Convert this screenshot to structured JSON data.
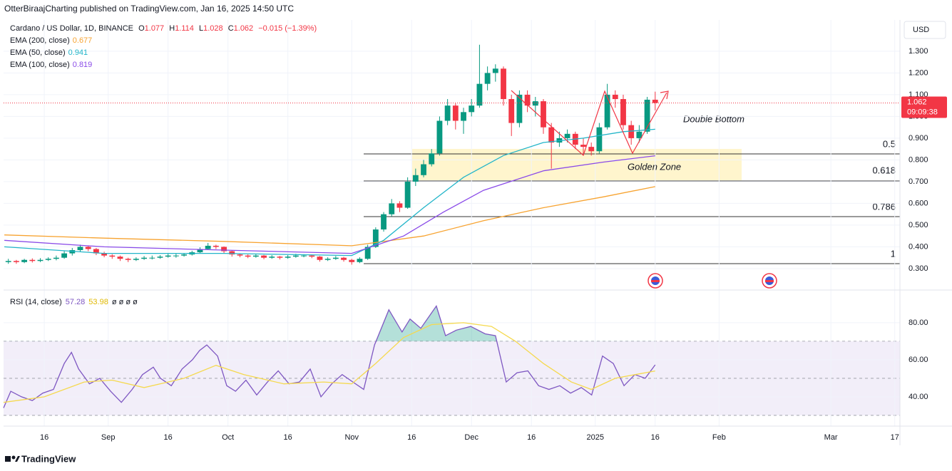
{
  "header": {
    "published": "OtterBiraajCharting published on TradingView.com, Jan 16, 2025 14:50 UTC"
  },
  "footer": {
    "brand": "TradingView"
  },
  "chart_data": [
    {
      "type": "candlestick",
      "title": "Cardano / US Dollar, 1D, BINANCE",
      "ohlc_legend": [
        {
          "key": "O",
          "value": "1.077"
        },
        {
          "key": "H",
          "value": "1.114"
        },
        {
          "key": "L",
          "value": "1.028"
        },
        {
          "key": "C",
          "value": "1.062"
        },
        {
          "key": "",
          "value": "−0.015 (−1.39%)"
        }
      ],
      "currency": "USD",
      "price_label": "1.062",
      "countdown": "09:09:38",
      "up_color": "#089981",
      "down_color": "#f23645",
      "xlim": [
        4.8,
        229.3
      ],
      "xticks": [
        {
          "value": 15,
          "label": "16"
        },
        {
          "value": 31,
          "label": "Sep"
        },
        {
          "value": 46,
          "label": "16"
        },
        {
          "value": 61,
          "label": "Oct"
        },
        {
          "value": 76,
          "label": "16"
        },
        {
          "value": 92,
          "label": "Nov"
        },
        {
          "value": 107,
          "label": "16"
        },
        {
          "value": 122,
          "label": "Dec"
        },
        {
          "value": 137,
          "label": "16"
        },
        {
          "value": 153,
          "label": "2025"
        },
        {
          "value": 168,
          "label": "16"
        },
        {
          "value": 184,
          "label": "Feb"
        },
        {
          "value": 212,
          "label": "Mar"
        },
        {
          "value": 228,
          "label": "17"
        }
      ],
      "ylim": [
        0.208,
        1.444
      ],
      "yticks": [
        {
          "value": 0.3,
          "label": "0.300"
        },
        {
          "value": 0.4,
          "label": "0.400"
        },
        {
          "value": 0.5,
          "label": "0.500"
        },
        {
          "value": 0.6,
          "label": "0.600"
        },
        {
          "value": 0.7,
          "label": "0.700"
        },
        {
          "value": 0.8,
          "label": "0.800"
        },
        {
          "value": 0.9,
          "label": "0.900"
        },
        {
          "value": 1.0,
          "label": "1.000"
        },
        {
          "value": 1.1,
          "label": "1.100"
        },
        {
          "value": 1.2,
          "label": "1.200"
        },
        {
          "value": 1.3,
          "label": "1.300"
        }
      ],
      "x": [
        6,
        8,
        10,
        12,
        14,
        16,
        18,
        20,
        22,
        24,
        26,
        28,
        30,
        32,
        34,
        36,
        38,
        40,
        42,
        44,
        46,
        48,
        50,
        52,
        54,
        56,
        58,
        60,
        62,
        64,
        66,
        68,
        70,
        72,
        74,
        76,
        78,
        80,
        82,
        84,
        86,
        88,
        90,
        92,
        94,
        96,
        98,
        100,
        102,
        104,
        106,
        108,
        110,
        112,
        114,
        116,
        118,
        120,
        122,
        124,
        126,
        128,
        130,
        132,
        134,
        136,
        138,
        140,
        142,
        144,
        146,
        148,
        150,
        152,
        154,
        156,
        158,
        160,
        162,
        164,
        166,
        168
      ],
      "ohlc": [
        [
          0.33,
          0.345,
          0.322,
          0.335
        ],
        [
          0.335,
          0.34,
          0.322,
          0.33
        ],
        [
          0.33,
          0.345,
          0.325,
          0.34
        ],
        [
          0.34,
          0.347,
          0.328,
          0.335
        ],
        [
          0.335,
          0.348,
          0.33,
          0.34
        ],
        [
          0.34,
          0.352,
          0.335,
          0.345
        ],
        [
          0.345,
          0.36,
          0.338,
          0.35
        ],
        [
          0.35,
          0.38,
          0.345,
          0.37
        ],
        [
          0.37,
          0.395,
          0.36,
          0.385
        ],
        [
          0.385,
          0.41,
          0.378,
          0.4
        ],
        [
          0.4,
          0.405,
          0.38,
          0.39
        ],
        [
          0.39,
          0.395,
          0.362,
          0.37
        ],
        [
          0.37,
          0.378,
          0.352,
          0.36
        ],
        [
          0.36,
          0.366,
          0.345,
          0.355
        ],
        [
          0.355,
          0.36,
          0.335,
          0.345
        ],
        [
          0.345,
          0.35,
          0.33,
          0.34
        ],
        [
          0.34,
          0.352,
          0.335,
          0.345
        ],
        [
          0.345,
          0.358,
          0.34,
          0.35
        ],
        [
          0.35,
          0.36,
          0.342,
          0.35
        ],
        [
          0.35,
          0.362,
          0.345,
          0.355
        ],
        [
          0.355,
          0.368,
          0.35,
          0.36
        ],
        [
          0.36,
          0.368,
          0.35,
          0.36
        ],
        [
          0.36,
          0.372,
          0.355,
          0.365
        ],
        [
          0.365,
          0.382,
          0.36,
          0.375
        ],
        [
          0.375,
          0.398,
          0.37,
          0.39
        ],
        [
          0.39,
          0.418,
          0.385,
          0.405
        ],
        [
          0.405,
          0.41,
          0.39,
          0.4
        ],
        [
          0.4,
          0.402,
          0.372,
          0.38
        ],
        [
          0.38,
          0.385,
          0.355,
          0.365
        ],
        [
          0.365,
          0.37,
          0.352,
          0.36
        ],
        [
          0.36,
          0.365,
          0.348,
          0.355
        ],
        [
          0.355,
          0.368,
          0.35,
          0.36
        ],
        [
          0.36,
          0.363,
          0.343,
          0.35
        ],
        [
          0.35,
          0.362,
          0.345,
          0.355
        ],
        [
          0.355,
          0.358,
          0.342,
          0.35
        ],
        [
          0.35,
          0.362,
          0.345,
          0.355
        ],
        [
          0.355,
          0.368,
          0.35,
          0.36
        ],
        [
          0.36,
          0.366,
          0.352,
          0.36
        ],
        [
          0.36,
          0.365,
          0.348,
          0.355
        ],
        [
          0.355,
          0.358,
          0.332,
          0.34
        ],
        [
          0.34,
          0.352,
          0.335,
          0.345
        ],
        [
          0.345,
          0.358,
          0.34,
          0.35
        ],
        [
          0.35,
          0.354,
          0.332,
          0.34
        ],
        [
          0.34,
          0.345,
          0.318,
          0.33
        ],
        [
          0.33,
          0.352,
          0.325,
          0.345
        ],
        [
          0.345,
          0.41,
          0.34,
          0.4
        ],
        [
          0.4,
          0.49,
          0.395,
          0.48
        ],
        [
          0.48,
          0.56,
          0.47,
          0.55
        ],
        [
          0.55,
          0.62,
          0.54,
          0.6
        ],
        [
          0.6,
          0.61,
          0.56,
          0.58
        ],
        [
          0.58,
          0.72,
          0.575,
          0.7
        ],
        [
          0.7,
          0.76,
          0.68,
          0.73
        ],
        [
          0.73,
          0.8,
          0.72,
          0.78
        ],
        [
          0.78,
          0.85,
          0.77,
          0.83
        ],
        [
          0.83,
          1.0,
          0.82,
          0.98
        ],
        [
          0.98,
          1.08,
          0.96,
          1.05
        ],
        [
          1.05,
          1.06,
          0.94,
          0.98
        ],
        [
          0.98,
          1.04,
          0.92,
          1.02
        ],
        [
          1.02,
          1.08,
          1.0,
          1.05
        ],
        [
          1.05,
          1.33,
          1.04,
          1.15
        ],
        [
          1.15,
          1.23,
          1.12,
          1.2
        ],
        [
          1.2,
          1.24,
          1.16,
          1.22
        ],
        [
          1.22,
          1.23,
          1.05,
          1.08
        ],
        [
          1.08,
          1.1,
          0.91,
          0.97
        ],
        [
          0.97,
          1.12,
          0.95,
          1.1
        ],
        [
          1.1,
          1.12,
          1.02,
          1.05
        ],
        [
          1.05,
          1.09,
          1.0,
          1.07
        ],
        [
          1.07,
          1.08,
          0.92,
          0.95
        ],
        [
          0.95,
          0.97,
          0.76,
          0.88
        ],
        [
          0.88,
          0.93,
          0.86,
          0.9
        ],
        [
          0.9,
          0.94,
          0.88,
          0.92
        ],
        [
          0.92,
          0.93,
          0.85,
          0.87
        ],
        [
          0.87,
          0.9,
          0.83,
          0.86
        ],
        [
          0.86,
          0.88,
          0.82,
          0.84
        ],
        [
          0.84,
          0.97,
          0.83,
          0.95
        ],
        [
          0.95,
          1.15,
          0.94,
          1.1
        ],
        [
          1.1,
          1.12,
          1.04,
          1.08
        ],
        [
          1.08,
          1.1,
          0.94,
          0.96
        ],
        [
          0.96,
          0.98,
          0.87,
          0.9
        ],
        [
          0.9,
          0.96,
          0.88,
          0.93
        ],
        [
          0.93,
          1.09,
          0.92,
          1.077
        ],
        [
          1.077,
          1.114,
          1.028,
          1.062
        ]
      ],
      "series": [
        {
          "name": "EMA (200, close)",
          "last_label": "0.677",
          "color": "#f7a330",
          "x": [
            5,
            30,
            60,
            92,
            110,
            125,
            140,
            155,
            168
          ],
          "values": [
            0.455,
            0.44,
            0.425,
            0.405,
            0.45,
            0.52,
            0.58,
            0.63,
            0.677
          ]
        },
        {
          "name": "EMA (50, close)",
          "last_label": "0.941",
          "color": "#22b5c9",
          "x": [
            5,
            30,
            60,
            92,
            100,
            110,
            120,
            130,
            140,
            150,
            160,
            168
          ],
          "values": [
            0.4,
            0.37,
            0.37,
            0.36,
            0.43,
            0.58,
            0.72,
            0.82,
            0.88,
            0.9,
            0.93,
            0.941
          ]
        },
        {
          "name": "EMA (100, close)",
          "last_label": "0.819",
          "color": "#8a4be8",
          "x": [
            5,
            30,
            60,
            92,
            105,
            115,
            125,
            140,
            155,
            168
          ],
          "values": [
            0.43,
            0.4,
            0.385,
            0.37,
            0.45,
            0.56,
            0.66,
            0.75,
            0.79,
            0.819
          ]
        }
      ],
      "fib_levels": [
        0.5,
        0.618,
        0.786,
        1
      ],
      "annotations": [
        "Double Bottom",
        "Golden Zone"
      ]
    },
    {
      "type": "line",
      "title": "RSI (14, close)",
      "extra_legend": "ø ø ø ø",
      "ylim": [
        24.2,
        96.5
      ],
      "yticks": [
        {
          "value": 80,
          "label": "80.00"
        },
        {
          "value": 60,
          "label": "60.00"
        },
        {
          "value": 40,
          "label": "40.00"
        }
      ],
      "bands": [
        30,
        50,
        70
      ],
      "band_color": "#7e57c2",
      "overbought_color": "#089981",
      "series": [
        {
          "last_label": "57.28",
          "color": "#7e57c2",
          "x": [
            4.8,
            6.6,
            9.3,
            12,
            14.6,
            17.3,
            20,
            21.8,
            23.6,
            26.3,
            28.9,
            31.6,
            34.3,
            37,
            39.6,
            42.3,
            44.1,
            46.8,
            49.5,
            52.1,
            53.9,
            55.7,
            58.4,
            60.7,
            62.9,
            65.5,
            68.2,
            70.9,
            73.6,
            76.3,
            78.9,
            81.6,
            84.3,
            87,
            89.6,
            92.3,
            95,
            97.7,
            101.3,
            104.6,
            106.6,
            109.3,
            113.2,
            115.5,
            118.2,
            121.8,
            125.4,
            128,
            130.7,
            133.4,
            136.1,
            138.8,
            141.4,
            144.1,
            146.8,
            149.5,
            152.1,
            154.8,
            157.5,
            160.2,
            162.9,
            165.5,
            168
          ],
          "values": [
            34,
            43,
            40,
            38,
            42,
            44,
            58,
            64,
            55,
            47,
            50,
            43,
            37,
            44,
            52,
            56,
            50,
            46,
            55,
            60,
            65,
            68,
            62,
            46,
            43,
            49,
            41,
            48,
            54,
            47,
            48,
            55,
            40,
            47,
            52,
            48,
            44,
            68,
            87,
            75,
            82,
            77,
            89,
            73,
            76,
            78,
            74,
            73,
            48,
            53,
            54,
            46,
            44,
            46,
            42,
            45,
            41,
            62,
            58,
            46,
            52,
            50,
            57.28
          ]
        },
        {
          "last_label": "53.98",
          "color": "#f5d94e",
          "x": [
            4.8,
            15,
            25,
            32,
            40,
            50,
            58,
            65,
            75,
            85,
            92,
            98,
            105,
            112,
            120,
            127,
            133,
            140,
            147,
            152,
            158,
            163,
            168
          ],
          "values": [
            37,
            40,
            48,
            49,
            45,
            50,
            57,
            52,
            47,
            48,
            47,
            58,
            72,
            79,
            80,
            78,
            70,
            58,
            48,
            44,
            50,
            52,
            53.98
          ]
        }
      ]
    }
  ]
}
